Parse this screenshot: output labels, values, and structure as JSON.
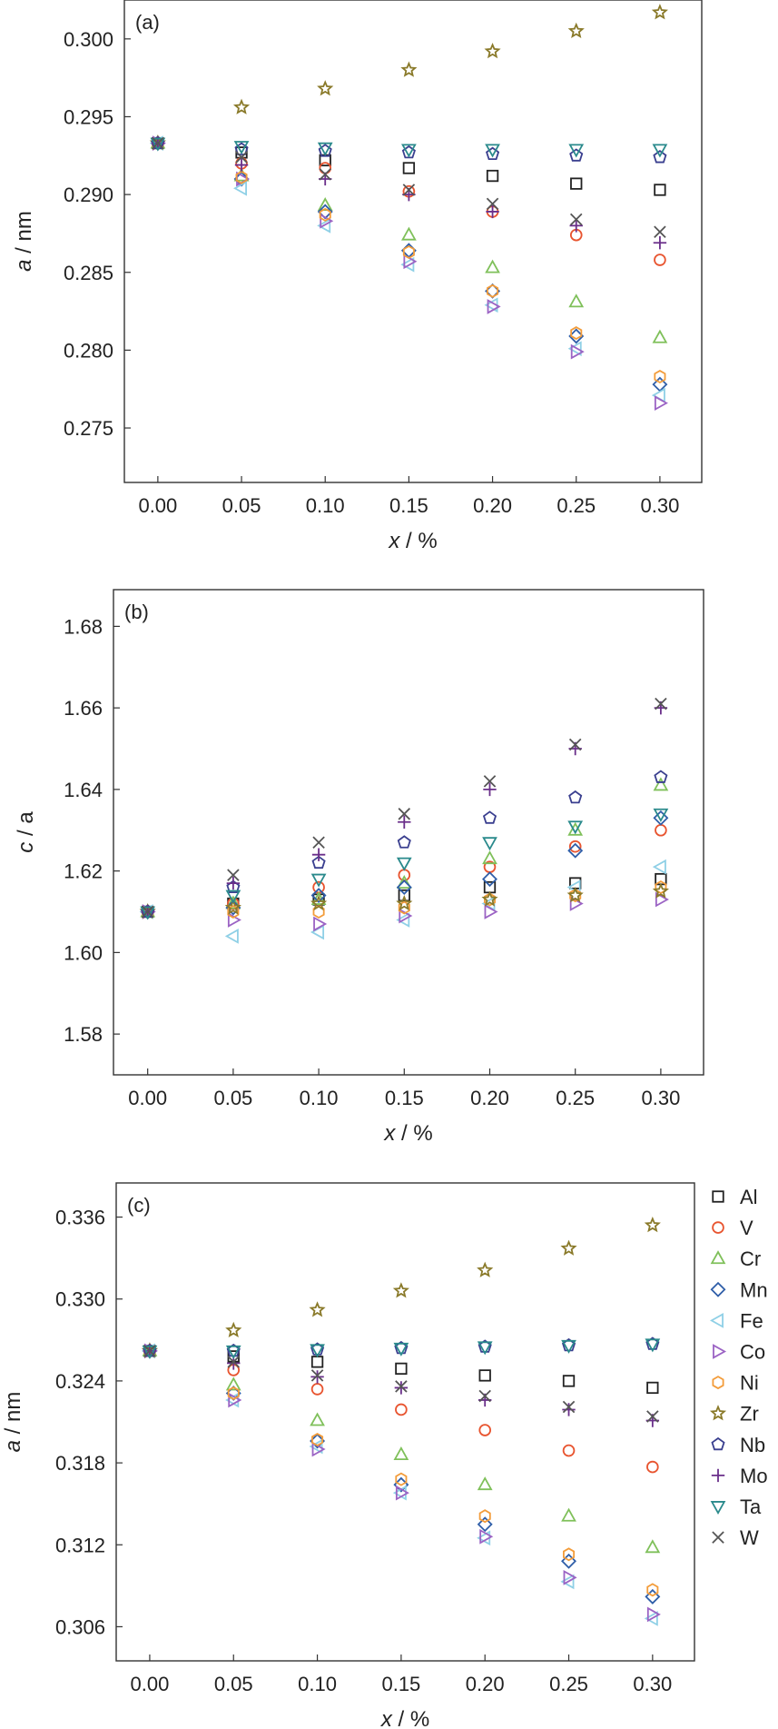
{
  "figure": {
    "panels": [
      "(a)",
      "(b)",
      "(c)"
    ]
  },
  "colors": {
    "Al": "#222222",
    "V": "#e8542f",
    "Cr": "#7fc05a",
    "Mn": "#2f5ea8",
    "Fe": "#8fd0e6",
    "Co": "#9b63c4",
    "Ni": "#f39c3a",
    "Zr": "#8a7a2a",
    "Nb": "#3a3f8f",
    "Mo": "#6a2f8a",
    "Ta": "#2a8a8c",
    "W": "#555555"
  },
  "legend": {
    "entries": [
      {
        "label": "Al",
        "marker": "square"
      },
      {
        "label": "V",
        "marker": "circle"
      },
      {
        "label": "Cr",
        "marker": "triangle-up"
      },
      {
        "label": "Mn",
        "marker": "diamond"
      },
      {
        "label": "Fe",
        "marker": "triangle-left"
      },
      {
        "label": "Co",
        "marker": "triangle-right"
      },
      {
        "label": "Ni",
        "marker": "hexagon"
      },
      {
        "label": "Zr",
        "marker": "star"
      },
      {
        "label": "Nb",
        "marker": "pentagon"
      },
      {
        "label": "Mo",
        "marker": "plus"
      },
      {
        "label": "Ta",
        "marker": "triangle-down"
      },
      {
        "label": "W",
        "marker": "x"
      }
    ]
  },
  "chart_data": [
    {
      "type": "scatter",
      "panel_label": "(a)",
      "xlabel": "x / %",
      "ylabel": "a / nm",
      "xlim": [
        -0.02,
        0.325
      ],
      "ylim": [
        0.2715,
        0.3025
      ],
      "xticks": [
        "0.00",
        "0.05",
        "0.10",
        "0.15",
        "0.20",
        "0.25",
        "0.30"
      ],
      "yticks": [
        "0.275",
        "0.280",
        "0.285",
        "0.290",
        "0.295",
        "0.300"
      ],
      "x": [
        0.0,
        0.05,
        0.1,
        0.15,
        0.2,
        0.25,
        0.3
      ],
      "series": [
        {
          "name": "Al",
          "values": [
            0.2933,
            0.2927,
            0.2922,
            0.2917,
            0.2912,
            0.2907,
            0.2903
          ]
        },
        {
          "name": "V",
          "values": [
            0.2933,
            0.292,
            0.2917,
            0.2902,
            0.2889,
            0.2874,
            0.2858
          ]
        },
        {
          "name": "Cr",
          "values": [
            0.2933,
            0.2912,
            0.2893,
            0.2874,
            0.2853,
            0.2831,
            0.2808
          ]
        },
        {
          "name": "Mn",
          "values": [
            0.2933,
            0.291,
            0.2889,
            0.2864,
            0.2838,
            0.2809,
            0.2778
          ]
        },
        {
          "name": "Fe",
          "values": [
            0.2933,
            0.2904,
            0.288,
            0.2855,
            0.2829,
            0.2801,
            0.2771
          ]
        },
        {
          "name": "Co",
          "values": [
            0.2933,
            0.291,
            0.2883,
            0.2857,
            0.2828,
            0.2799,
            0.2766
          ]
        },
        {
          "name": "Ni",
          "values": [
            0.2933,
            0.2911,
            0.2887,
            0.2863,
            0.2838,
            0.2811,
            0.2783
          ]
        },
        {
          "name": "Zr",
          "values": [
            0.2933,
            0.2956,
            0.2968,
            0.298,
            0.2992,
            0.3005,
            0.3017
          ]
        },
        {
          "name": "Nb",
          "values": [
            0.2933,
            0.2929,
            0.2928,
            0.2927,
            0.2926,
            0.2925,
            0.2924
          ]
        },
        {
          "name": "Mo",
          "values": [
            0.2933,
            0.2919,
            0.291,
            0.29,
            0.2889,
            0.288,
            0.2869
          ]
        },
        {
          "name": "Ta",
          "values": [
            0.2933,
            0.2931,
            0.293,
            0.2929,
            0.2929,
            0.2929,
            0.2929
          ]
        },
        {
          "name": "W",
          "values": [
            0.2933,
            0.2924,
            0.2913,
            0.2903,
            0.2894,
            0.2884,
            0.2876
          ]
        }
      ]
    },
    {
      "type": "scatter",
      "panel_label": "(b)",
      "xlabel": "x / %",
      "ylabel": "c / a",
      "xlim": [
        -0.02,
        0.325
      ],
      "ylim": [
        1.57,
        1.689
      ],
      "xticks": [
        "0.00",
        "0.05",
        "0.10",
        "0.15",
        "0.20",
        "0.25",
        "0.30"
      ],
      "yticks": [
        "1.58",
        "1.60",
        "1.62",
        "1.64",
        "1.66",
        "1.68"
      ],
      "x": [
        0.0,
        0.05,
        0.1,
        0.15,
        0.2,
        0.25,
        0.3
      ],
      "series": [
        {
          "name": "Al",
          "values": [
            1.61,
            1.612,
            1.613,
            1.614,
            1.616,
            1.617,
            1.618
          ]
        },
        {
          "name": "V",
          "values": [
            1.61,
            1.612,
            1.616,
            1.619,
            1.621,
            1.626,
            1.63
          ]
        },
        {
          "name": "Cr",
          "values": [
            1.61,
            1.612,
            1.613,
            1.617,
            1.623,
            1.63,
            1.641
          ]
        },
        {
          "name": "Mn",
          "values": [
            1.61,
            1.611,
            1.614,
            1.616,
            1.618,
            1.625,
            1.633
          ]
        },
        {
          "name": "Fe",
          "values": [
            1.61,
            1.604,
            1.605,
            1.608,
            1.612,
            1.616,
            1.621
          ]
        },
        {
          "name": "Co",
          "values": [
            1.61,
            1.608,
            1.607,
            1.609,
            1.61,
            1.612,
            1.613
          ]
        },
        {
          "name": "Ni",
          "values": [
            1.61,
            1.61,
            1.61,
            1.611,
            1.613,
            1.614,
            1.616
          ]
        },
        {
          "name": "Zr",
          "values": [
            1.61,
            1.611,
            1.612,
            1.612,
            1.613,
            1.614,
            1.615
          ]
        },
        {
          "name": "Nb",
          "values": [
            1.61,
            1.616,
            1.622,
            1.627,
            1.633,
            1.638,
            1.643
          ]
        },
        {
          "name": "Mo",
          "values": [
            1.61,
            1.617,
            1.624,
            1.632,
            1.64,
            1.65,
            1.66
          ]
        },
        {
          "name": "Ta",
          "values": [
            1.61,
            1.614,
            1.618,
            1.622,
            1.627,
            1.631,
            1.634
          ]
        },
        {
          "name": "W",
          "values": [
            1.61,
            1.619,
            1.627,
            1.634,
            1.642,
            1.651,
            1.661
          ]
        }
      ]
    },
    {
      "type": "scatter",
      "panel_label": "(c)",
      "xlabel": "x / %",
      "ylabel": "a / nm",
      "xlim": [
        -0.02,
        0.325
      ],
      "ylim": [
        0.3035,
        0.3385
      ],
      "xticks": [
        "0.00",
        "0.05",
        "0.10",
        "0.15",
        "0.20",
        "0.25",
        "0.30"
      ],
      "yticks": [
        "0.306",
        "0.312",
        "0.318",
        "0.324",
        "0.330",
        "0.336"
      ],
      "x": [
        0.0,
        0.05,
        0.1,
        0.15,
        0.2,
        0.25,
        0.3
      ],
      "series": [
        {
          "name": "Al",
          "values": [
            0.3262,
            0.3258,
            0.3254,
            0.3249,
            0.3244,
            0.324,
            0.3235
          ]
        },
        {
          "name": "V",
          "values": [
            0.3262,
            0.3248,
            0.3234,
            0.3219,
            0.3204,
            0.3189,
            0.3177
          ]
        },
        {
          "name": "Cr",
          "values": [
            0.3262,
            0.3237,
            0.3211,
            0.3186,
            0.3164,
            0.3141,
            0.3118
          ]
        },
        {
          "name": "Mn",
          "values": [
            0.3262,
            0.3231,
            0.3196,
            0.3164,
            0.3135,
            0.3108,
            0.3082
          ]
        },
        {
          "name": "Fe",
          "values": [
            0.3262,
            0.3226,
            0.3192,
            0.3158,
            0.3125,
            0.3093,
            0.3066
          ]
        },
        {
          "name": "Co",
          "values": [
            0.3262,
            0.3226,
            0.319,
            0.3158,
            0.3126,
            0.3096,
            0.3069
          ]
        },
        {
          "name": "Ni",
          "values": [
            0.3262,
            0.3231,
            0.3197,
            0.3168,
            0.3141,
            0.3113,
            0.3087
          ]
        },
        {
          "name": "Zr",
          "values": [
            0.3262,
            0.3277,
            0.3292,
            0.3306,
            0.3321,
            0.3337,
            0.3354
          ]
        },
        {
          "name": "Nb",
          "values": [
            0.3262,
            0.3262,
            0.3263,
            0.3264,
            0.3265,
            0.3266,
            0.3267
          ]
        },
        {
          "name": "Mo",
          "values": [
            0.3262,
            0.3253,
            0.3243,
            0.3235,
            0.3226,
            0.3219,
            0.3211
          ]
        },
        {
          "name": "Ta",
          "values": [
            0.3262,
            0.3262,
            0.3263,
            0.3264,
            0.3265,
            0.3266,
            0.3267
          ]
        },
        {
          "name": "W",
          "values": [
            0.3262,
            0.3254,
            0.3244,
            0.3236,
            0.3229,
            0.3221,
            0.3214
          ]
        }
      ]
    }
  ]
}
